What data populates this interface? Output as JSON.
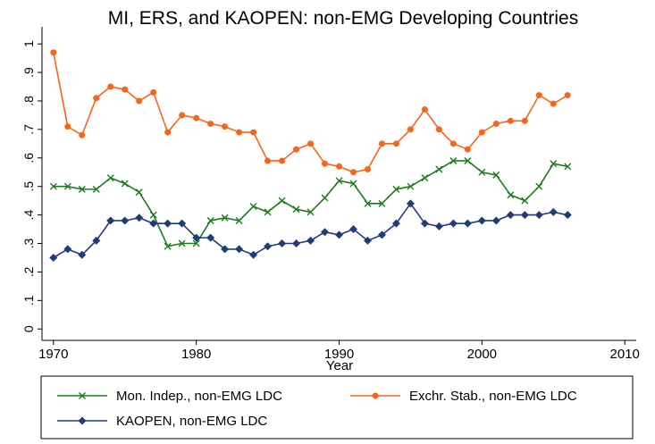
{
  "chart_data": {
    "type": "line",
    "title": "MI, ERS, and KAOPEN: non-EMG Developing Countries",
    "x_label": "Year",
    "x": [
      1970,
      1971,
      1972,
      1973,
      1974,
      1975,
      1976,
      1977,
      1978,
      1979,
      1980,
      1981,
      1982,
      1983,
      1984,
      1985,
      1986,
      1987,
      1988,
      1989,
      1990,
      1991,
      1992,
      1993,
      1994,
      1995,
      1996,
      1997,
      1998,
      1999,
      2000,
      2001,
      2002,
      2003,
      2004,
      2005,
      2006
    ],
    "xlim": [
      1969.2,
      2010.8
    ],
    "xticks": [
      1970,
      1980,
      1990,
      2000,
      2010
    ],
    "ylim": [
      -0.04,
      1.06
    ],
    "yticks": [
      0,
      {
        "value": 0.1,
        "label": ".1"
      },
      {
        "value": 0.2,
        "label": ".2"
      },
      {
        "value": 0.3,
        "label": ".3"
      },
      {
        "value": 0.4,
        "label": ".4"
      },
      {
        "value": 0.5,
        "label": ".5"
      },
      {
        "value": 0.6,
        "label": ".6"
      },
      {
        "value": 0.7,
        "label": ".7"
      },
      {
        "value": 0.8,
        "label": ".8"
      },
      {
        "value": 0.9,
        "label": ".9"
      },
      1
    ],
    "series": [
      {
        "name": "Mon. Indep., non-EMG LDC",
        "color": "#1e7b1e",
        "marker": "x",
        "values": [
          0.5,
          0.5,
          0.49,
          0.49,
          0.53,
          0.51,
          0.48,
          0.4,
          0.29,
          0.3,
          0.3,
          0.38,
          0.39,
          0.38,
          0.43,
          0.41,
          0.45,
          0.42,
          0.41,
          0.46,
          0.52,
          0.51,
          0.44,
          0.44,
          0.49,
          0.5,
          0.53,
          0.56,
          0.59,
          0.59,
          0.55,
          0.54,
          0.47,
          0.45,
          0.5,
          0.58,
          0.57
        ]
      },
      {
        "name": "Exchr. Stab., non-EMG LDC",
        "color": "#f4661c",
        "marker": "circle",
        "values": [
          0.97,
          0.71,
          0.68,
          0.81,
          0.85,
          0.84,
          0.8,
          0.83,
          0.69,
          0.75,
          0.74,
          0.72,
          0.71,
          0.69,
          0.69,
          0.59,
          0.59,
          0.63,
          0.65,
          0.58,
          0.57,
          0.55,
          0.56,
          0.65,
          0.65,
          0.7,
          0.77,
          0.7,
          0.65,
          0.63,
          0.69,
          0.72,
          0.73,
          0.73,
          0.82,
          0.79,
          0.82
        ]
      },
      {
        "name": "KAOPEN, non-EMG LDC",
        "color": "#1f3c78",
        "marker": "diamond",
        "values": [
          0.25,
          0.28,
          0.26,
          0.31,
          0.38,
          0.38,
          0.39,
          0.37,
          0.37,
          0.37,
          0.32,
          0.32,
          0.28,
          0.28,
          0.26,
          0.29,
          0.3,
          0.3,
          0.31,
          0.34,
          0.33,
          0.35,
          0.31,
          0.33,
          0.37,
          0.44,
          0.37,
          0.36,
          0.37,
          0.37,
          0.38,
          0.38,
          0.4,
          0.4,
          0.4,
          0.41,
          0.4
        ]
      }
    ]
  }
}
